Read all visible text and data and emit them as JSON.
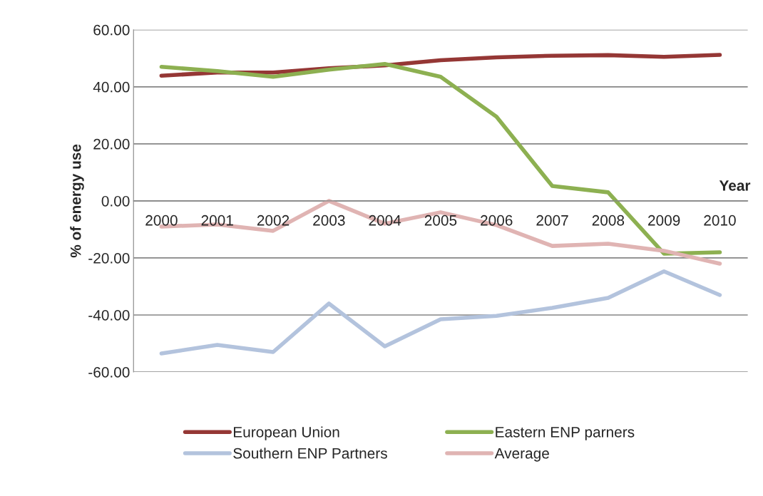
{
  "chart_data": {
    "type": "line",
    "xlabel": "Year",
    "ylabel": "% of energy use",
    "categories": [
      "2000",
      "2001",
      "2002",
      "2003",
      "2004",
      "2005",
      "2006",
      "2007",
      "2008",
      "2009",
      "2010"
    ],
    "series": [
      {
        "name": "European Union",
        "color": "#953735",
        "values": [
          43.9,
          45,
          45,
          46.5,
          47.5,
          49.3,
          50.3,
          50.9,
          51.1,
          50.5,
          51.2
        ]
      },
      {
        "name": "Eastern ENP parners",
        "color": "#8db051",
        "values": [
          47,
          45.5,
          43.5,
          46,
          48,
          43.5,
          29.5,
          5.2,
          3,
          -18.5,
          -18
        ]
      },
      {
        "name": "Southern ENP Partners",
        "color": "#b3c3dd",
        "values": [
          -53.5,
          -50.5,
          -53,
          -36,
          -51,
          -41.5,
          -40.3,
          -37.5,
          -34,
          -24.7,
          -33
        ]
      },
      {
        "name": "Average",
        "color": "#e0b4b3",
        "values": [
          -9,
          -8.3,
          -10.5,
          0,
          -8,
          -4,
          -8.5,
          -15.8,
          -15,
          -17.5,
          -22
        ]
      }
    ],
    "ylim": [
      -60,
      60
    ],
    "yticks": [
      {
        "value": -60,
        "label": "-60.00"
      },
      {
        "value": -40,
        "label": "-40.00"
      },
      {
        "value": -20,
        "label": "-20.00"
      },
      {
        "value": 0,
        "label": "0.00"
      },
      {
        "value": 20,
        "label": "20.00"
      },
      {
        "value": 40,
        "label": "40.00"
      },
      {
        "value": 60,
        "label": "60.00"
      }
    ],
    "grid": "y",
    "legend": "bottom",
    "marker": "none",
    "line_style": "solid"
  }
}
